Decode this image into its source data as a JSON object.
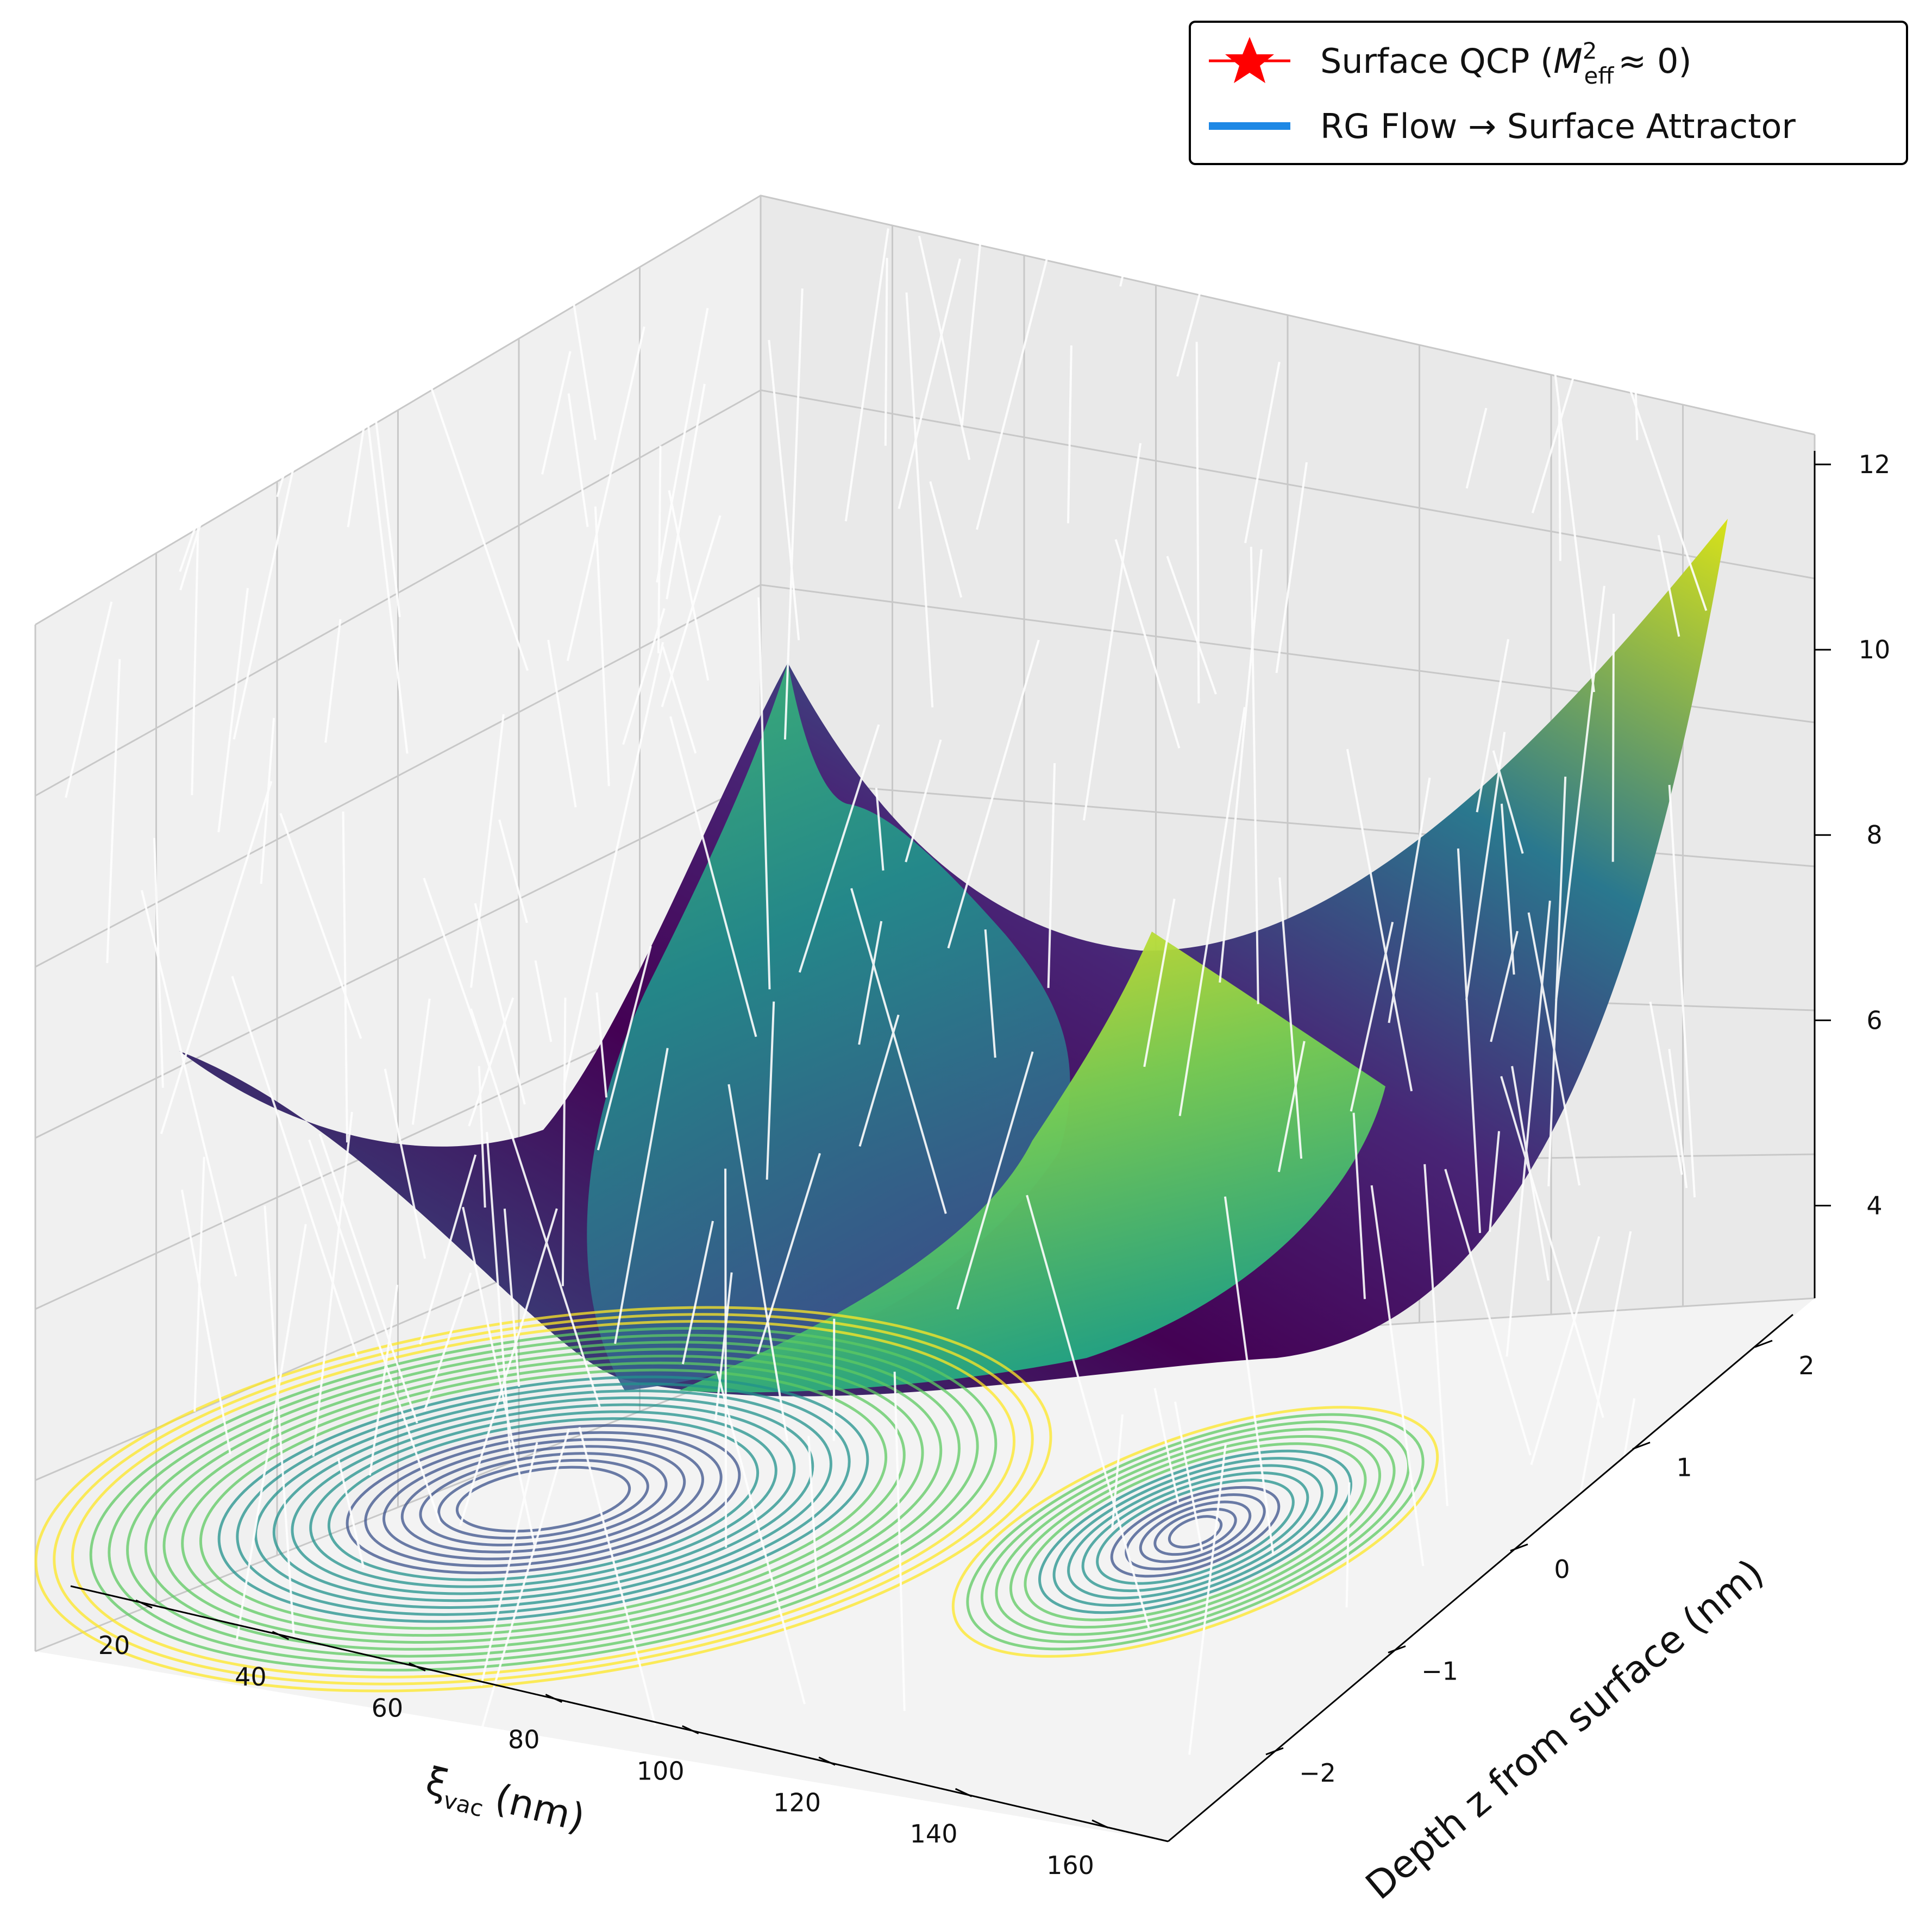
{
  "chart_data": {
    "type": "surface",
    "axes": {
      "x": {
        "label_main": "ξ",
        "label_sub": "vac",
        "label_unit": "(nm)",
        "ticks": [
          "20",
          "40",
          "60",
          "80",
          "100",
          "120",
          "140",
          "160"
        ],
        "range": [
          20,
          160
        ]
      },
      "y": {
        "label": "Depth z from surface (nm)",
        "ticks": [
          "−2",
          "−1",
          "0",
          "1",
          "2"
        ],
        "range": [
          -2,
          2
        ]
      },
      "z": {
        "label": "",
        "ticks": [
          "4",
          "6",
          "8",
          "10",
          "12"
        ],
        "range": [
          3,
          12
        ]
      }
    },
    "grid": true,
    "colormap": "viridis",
    "colormap_stops": [
      "#440154",
      "#3b528b",
      "#21918c",
      "#5ec962",
      "#fde725"
    ],
    "legend": {
      "position": "top-right",
      "entries": [
        {
          "label_prefix": "Surface QCP (",
          "label_math_base": "M",
          "label_math_sup": "2",
          "label_math_sub": "eff",
          "label_suffix": "≈ 0)",
          "marker": "star",
          "color": "#ff0000"
        },
        {
          "label": "RG Flow → Surface Attractor",
          "marker": "line",
          "color": "#1e88e5"
        }
      ]
    },
    "surfaces": [
      {
        "name": "surface-a",
        "x": [
          20,
          160
        ],
        "y": [
          -2,
          2
        ],
        "z_corners": [
          5.6,
          9.5,
          3.0,
          11.3
        ]
      },
      {
        "name": "surface-b",
        "x": [
          20,
          160
        ],
        "y": [
          -2,
          2
        ],
        "z_corners": [
          7.2,
          7.6,
          6.2,
          7.4
        ]
      }
    ],
    "flow_lines_color": "#ffffff",
    "contour_colors": [
      "#3b528b",
      "#21918c",
      "#5ec962",
      "#fde725"
    ]
  }
}
